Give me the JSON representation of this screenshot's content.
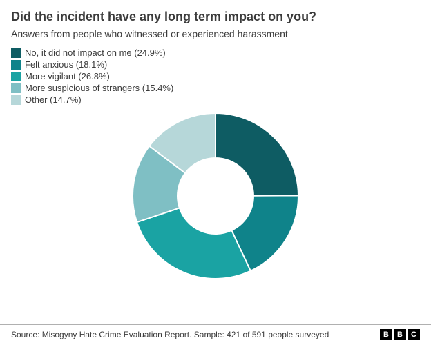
{
  "title": {
    "text": "Did the incident have any long term impact on you?",
    "fontsize": 18,
    "weight": "bold",
    "color": "#3b3b3b"
  },
  "subtitle": {
    "text": "Answers from people who witnessed or experienced harassment",
    "fontsize": 14,
    "color": "#3b3b3b"
  },
  "legend": {
    "fontsize": 13,
    "label_color": "#3b3b3b",
    "swatch_size": 14
  },
  "chart": {
    "type": "donut",
    "outer_radius": 120,
    "inner_radius": 55,
    "center_fill": "#ffffff",
    "background": "#ffffff",
    "start_angle_deg": -90,
    "gap_color": "#ffffff",
    "gap_width": 2,
    "slices": [
      {
        "label": "No, it did not impact on me (24.9%)",
        "value": 24.9,
        "color": "#0e5c63"
      },
      {
        "label": "Felt anxious (18.1%)",
        "value": 18.1,
        "color": "#0f838a"
      },
      {
        "label": "More vigilant (26.8%)",
        "value": 26.8,
        "color": "#1aa3a3"
      },
      {
        "label": "More suspicious of strangers (15.4%)",
        "value": 15.4,
        "color": "#7fbfc4"
      },
      {
        "label": "Other (14.7%)",
        "value": 14.7,
        "color": "#b6d7d9"
      }
    ]
  },
  "footer": {
    "source": "Source: Misogyny Hate Crime Evaluation Report. Sample: 421 of 591 people surveyed",
    "fontsize": 12,
    "color": "#3b3b3b",
    "border_color": "#b0b0b0"
  },
  "logo": {
    "letters": [
      "B",
      "B",
      "C"
    ],
    "box_bg": "#000000",
    "box_fg": "#ffffff"
  }
}
